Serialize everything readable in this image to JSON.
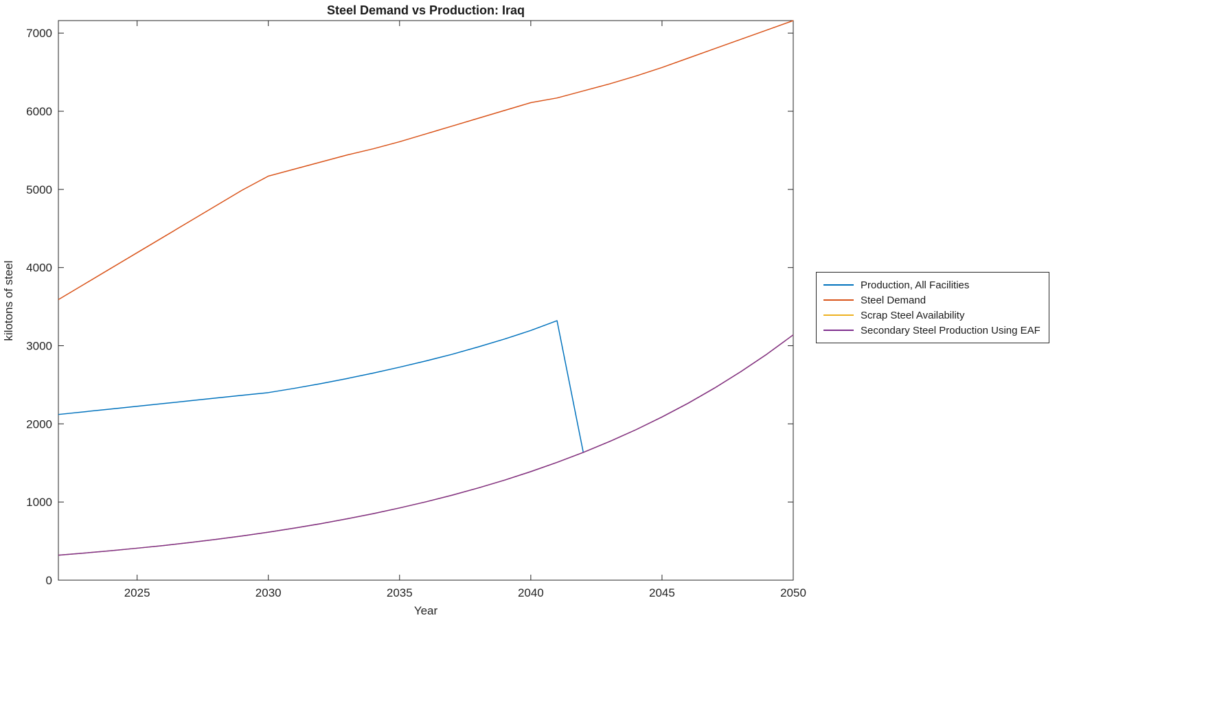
{
  "chart_data": {
    "type": "line",
    "title": "Steel Demand vs Production: Iraq",
    "xlabel": "Year",
    "ylabel": "kilotons of steel",
    "xlim": [
      2022,
      2050
    ],
    "ylim": [
      0,
      7160
    ],
    "xticks": [
      2025,
      2030,
      2035,
      2040,
      2045,
      2050
    ],
    "yticks": [
      0,
      1000,
      2000,
      3000,
      4000,
      5000,
      6000,
      7000
    ],
    "grid": false,
    "legend_position": "right-outside",
    "x": [
      2022,
      2023,
      2024,
      2025,
      2026,
      2027,
      2028,
      2029,
      2030,
      2031,
      2032,
      2033,
      2034,
      2035,
      2036,
      2037,
      2038,
      2039,
      2040,
      2041,
      2042,
      2043,
      2044,
      2045,
      2046,
      2047,
      2048,
      2049,
      2050
    ],
    "series": [
      {
        "name": "Production, All Facilities",
        "color": "#0072BD",
        "values": [
          2120,
          2155,
          2190,
          2225,
          2260,
          2295,
          2330,
          2365,
          2400,
          2455,
          2515,
          2580,
          2650,
          2725,
          2805,
          2890,
          2985,
          3085,
          3195,
          3320,
          1635,
          null,
          null,
          null,
          null,
          null,
          null,
          null,
          null
        ]
      },
      {
        "name": "Steel Demand",
        "color": "#D95319",
        "values": [
          3590,
          3790,
          3990,
          4190,
          4390,
          4590,
          4790,
          4990,
          5170,
          5260,
          5350,
          5440,
          5520,
          5610,
          5710,
          5810,
          5910,
          6010,
          6110,
          6170,
          6260,
          6350,
          6450,
          6560,
          6680,
          6800,
          6920,
          7040,
          7160
        ]
      },
      {
        "name": "Scrap Steel Availability",
        "color": "#EDB120",
        "values": [
          320,
          347,
          377,
          409,
          443,
          481,
          522,
          566,
          614,
          667,
          723,
          785,
          851,
          924,
          1002,
          1087,
          1180,
          1280,
          1389,
          1507,
          1635,
          1774,
          1924,
          2088,
          2265,
          2458,
          2667,
          2893,
          3139
        ]
      },
      {
        "name": "Secondary Steel Production Using EAF",
        "color": "#7E2F8E",
        "values": [
          320,
          347,
          377,
          409,
          443,
          481,
          522,
          566,
          614,
          667,
          723,
          785,
          851,
          924,
          1002,
          1087,
          1180,
          1280,
          1389,
          1507,
          1635,
          1774,
          1924,
          2088,
          2265,
          2458,
          2667,
          2893,
          3139
        ]
      }
    ]
  }
}
